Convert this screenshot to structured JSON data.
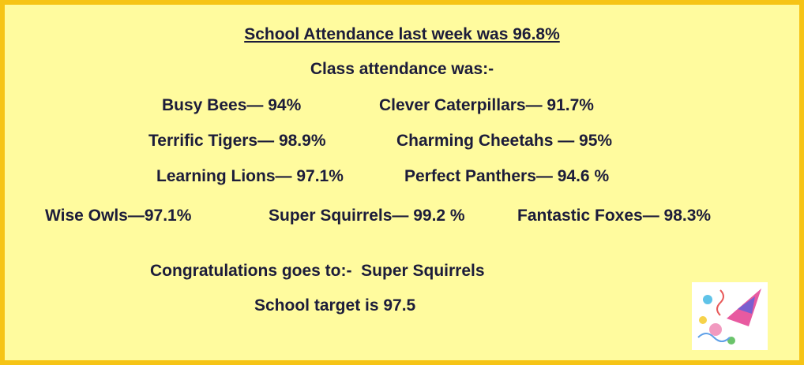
{
  "header": {
    "title": "School Attendance last week was 96.8%",
    "subtitle": "Class attendance was:-"
  },
  "classes": [
    [
      "Busy Bees— 94%",
      "Clever Caterpillars— 91.7%"
    ],
    [
      "Terrific Tigers— 98.9%",
      "Charming Cheetahs — 95%"
    ],
    [
      "Learning Lions— 97.1%",
      "Perfect Panthers— 94.6 %"
    ],
    [
      "Wise Owls—97.1%",
      "Super Squirrels— 99.2 %",
      "Fantastic Foxes— 98.3%"
    ]
  ],
  "footer": {
    "congratulations": "Congratulations goes to:-  Super Squirrels",
    "target": "School target is 97.5"
  }
}
